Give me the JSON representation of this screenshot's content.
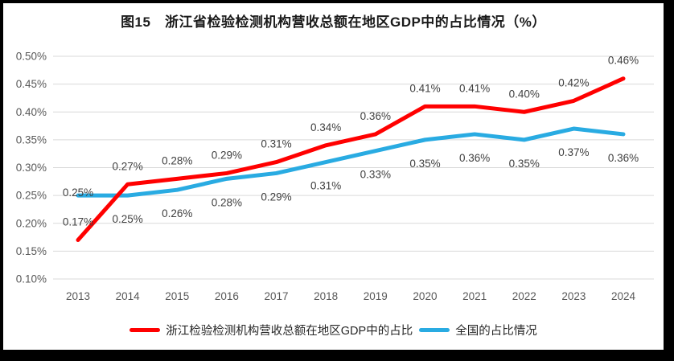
{
  "chart_data": {
    "type": "line",
    "title": "图15　浙江省检验检测机构营收总额在地区GDP中的占比情况（%）",
    "categories": [
      "2013",
      "2014",
      "2015",
      "2016",
      "2017",
      "2018",
      "2019",
      "2020",
      "2021",
      "2022",
      "2023",
      "2024"
    ],
    "series": [
      {
        "name": "浙江检验检测机构营收总额在地区GDP中的占比",
        "color": "#FF0000",
        "values": [
          0.17,
          0.27,
          0.28,
          0.29,
          0.31,
          0.34,
          0.36,
          0.41,
          0.41,
          0.4,
          0.42,
          0.46
        ],
        "data_labels": [
          "0.17%",
          "0.27%",
          "0.28%",
          "0.29%",
          "0.31%",
          "0.34%",
          "0.36%",
          "0.41%",
          "0.41%",
          "0.40%",
          "0.42%",
          "0.46%"
        ]
      },
      {
        "name": "全国的占比情况",
        "color": "#29ABE2",
        "values": [
          0.25,
          0.25,
          0.26,
          0.28,
          0.29,
          0.31,
          0.33,
          0.35,
          0.36,
          0.35,
          0.37,
          0.36
        ],
        "data_labels": [
          "0.25%",
          "0.25%",
          "0.26%",
          "0.28%",
          "0.29%",
          "0.31%",
          "0.33%",
          "0.35%",
          "0.36%",
          "0.35%",
          "0.37%",
          "0.36%"
        ]
      }
    ],
    "xlabel": "",
    "ylabel": "",
    "y_axis": {
      "min": 0.1,
      "max": 0.5,
      "step": 0.05,
      "unit": "%",
      "tick_labels": [
        "0.50%",
        "0.45%",
        "0.40%",
        "0.35%",
        "0.30%",
        "0.25%",
        "0.20%",
        "0.15%",
        "0.10%"
      ]
    },
    "grid": true,
    "legend_position": "bottom",
    "data_labels_shown": true,
    "colors": {
      "gridline": "#D9D9D9",
      "axis_text": "#595959",
      "data_label_text": "#404040",
      "title_text": "#1a1a1a",
      "plot_background": "#FFFFFF",
      "page_border": "#000000"
    }
  }
}
